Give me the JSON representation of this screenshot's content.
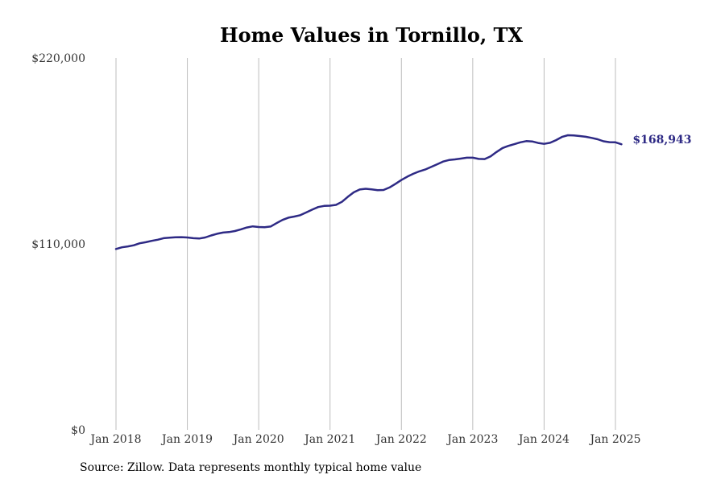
{
  "chart_data": {
    "type": "line",
    "title": "Home Values in Tornillo, TX",
    "xlabel": "",
    "ylabel": "",
    "y_tick_labels": [
      "$0",
      "$110,000",
      "$220,000"
    ],
    "y_ticks": [
      0,
      110000,
      220000
    ],
    "ylim": [
      0,
      220000
    ],
    "x_tick_labels": [
      "Jan 2018",
      "Jan 2019",
      "Jan 2020",
      "Jan 2021",
      "Jan 2022",
      "Jan 2023",
      "Jan 2024",
      "Jan 2025"
    ],
    "x_ticks": [
      "2018-01",
      "2019-01",
      "2020-01",
      "2021-01",
      "2022-01",
      "2023-01",
      "2024-01",
      "2025-01"
    ],
    "xlim": [
      "2018-01",
      "2025-02"
    ],
    "grid": "vertical",
    "end_label": "$168,943",
    "series": [
      {
        "color": "#2e2a85",
        "x": [
          "2018-01",
          "2018-02",
          "2018-03",
          "2018-04",
          "2018-05",
          "2018-06",
          "2018-07",
          "2018-08",
          "2018-09",
          "2018-10",
          "2018-11",
          "2018-12",
          "2019-01",
          "2019-02",
          "2019-03",
          "2019-04",
          "2019-05",
          "2019-06",
          "2019-07",
          "2019-08",
          "2019-09",
          "2019-10",
          "2019-11",
          "2019-12",
          "2020-01",
          "2020-02",
          "2020-03",
          "2020-04",
          "2020-05",
          "2020-06",
          "2020-07",
          "2020-08",
          "2020-09",
          "2020-10",
          "2020-11",
          "2020-12",
          "2021-01",
          "2021-02",
          "2021-03",
          "2021-04",
          "2021-05",
          "2021-06",
          "2021-07",
          "2021-08",
          "2021-09",
          "2021-10",
          "2021-11",
          "2021-12",
          "2022-01",
          "2022-02",
          "2022-03",
          "2022-04",
          "2022-05",
          "2022-06",
          "2022-07",
          "2022-08",
          "2022-09",
          "2022-10",
          "2022-11",
          "2022-12",
          "2023-01",
          "2023-02",
          "2023-03",
          "2023-04",
          "2023-05",
          "2023-06",
          "2023-07",
          "2023-08",
          "2023-09",
          "2023-10",
          "2023-11",
          "2023-12",
          "2024-01",
          "2024-02",
          "2024-03",
          "2024-04",
          "2024-05",
          "2024-06",
          "2024-07",
          "2024-08",
          "2024-09",
          "2024-10",
          "2024-11",
          "2024-12",
          "2025-01",
          "2025-02"
        ],
        "values": [
          107000,
          108000,
          108500,
          109200,
          110400,
          111000,
          111800,
          112500,
          113400,
          113700,
          113900,
          114000,
          113800,
          113400,
          113200,
          113800,
          115000,
          116000,
          116700,
          117000,
          117600,
          118600,
          119700,
          120400,
          120000,
          119900,
          120300,
          122300,
          124200,
          125500,
          126200,
          127000,
          128600,
          130300,
          131800,
          132500,
          132600,
          133100,
          134900,
          137900,
          140500,
          142200,
          142600,
          142300,
          141800,
          141900,
          143400,
          145500,
          147800,
          149800,
          151500,
          152900,
          154000,
          155500,
          157100,
          158700,
          159600,
          160000,
          160500,
          161000,
          161000,
          160300,
          160200,
          161800,
          164400,
          166700,
          168000,
          169000,
          170100,
          170800,
          170600,
          169700,
          169200,
          169800,
          171400,
          173300,
          174300,
          174200,
          173800,
          173400,
          172700,
          171900,
          170700,
          170200,
          170100,
          168943
        ]
      }
    ]
  },
  "source_note": "Source: Zillow. Data represents monthly typical home value"
}
